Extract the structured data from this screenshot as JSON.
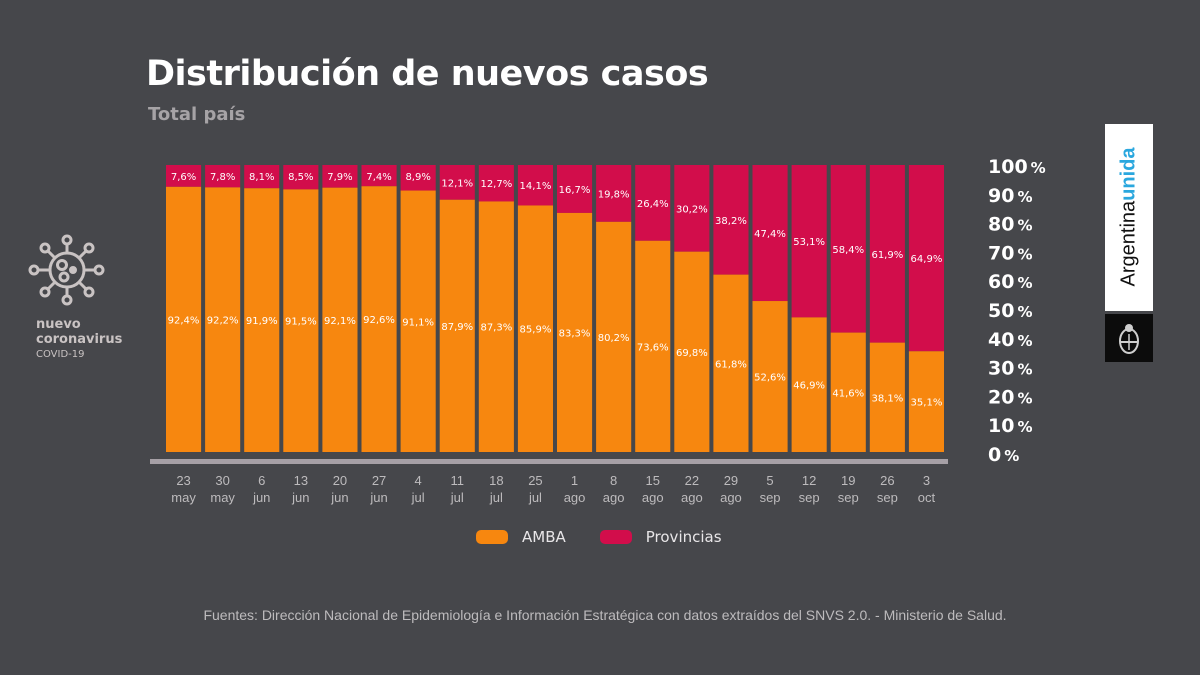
{
  "header": {
    "title": "Distribución de nuevos casos",
    "subtitle": "Total país"
  },
  "side_logo": {
    "line1": "nuevo",
    "line2": "coronavirus",
    "line3": "COVID-19",
    "icon": "virus-icon"
  },
  "brand": {
    "word1": "Argentina",
    "word2": "unida",
    "icon": "national-coat-of-arms-icon"
  },
  "colors": {
    "background": "#46474b",
    "amba": "#f7870f",
    "provincias": "#d20d4b",
    "axis": "#a6a0a6"
  },
  "footer": "Fuentes: Dirección Nacional de Epidemiología e Información Estratégica con datos extraídos del SNVS 2.0. - Ministerio de Salud.",
  "legend": [
    {
      "label": "AMBA",
      "color": "#f7870f"
    },
    {
      "label": "Provincias",
      "color": "#d20d4b"
    }
  ],
  "chart_data": {
    "type": "bar",
    "stacked": true,
    "title": "Distribución de nuevos casos",
    "subtitle": "Total país",
    "xlabel": "",
    "ylabel": "",
    "ylim": [
      0,
      100
    ],
    "yticks": [
      "0",
      "10",
      "20",
      "30",
      "40",
      "50",
      "60",
      "70",
      "80",
      "90",
      "100"
    ],
    "ytick_suffix": "%",
    "y_axis_side": "right",
    "grid": false,
    "legend_position": "bottom-center",
    "categories": [
      {
        "day": "23",
        "month": "may"
      },
      {
        "day": "30",
        "month": "may"
      },
      {
        "day": "6",
        "month": "jun"
      },
      {
        "day": "13",
        "month": "jun"
      },
      {
        "day": "20",
        "month": "jun"
      },
      {
        "day": "27",
        "month": "jun"
      },
      {
        "day": "4",
        "month": "jul"
      },
      {
        "day": "11",
        "month": "jul"
      },
      {
        "day": "18",
        "month": "jul"
      },
      {
        "day": "25",
        "month": "jul"
      },
      {
        "day": "1",
        "month": "ago"
      },
      {
        "day": "8",
        "month": "ago"
      },
      {
        "day": "15",
        "month": "ago"
      },
      {
        "day": "22",
        "month": "ago"
      },
      {
        "day": "29",
        "month": "ago"
      },
      {
        "day": "5",
        "month": "sep"
      },
      {
        "day": "12",
        "month": "sep"
      },
      {
        "day": "19",
        "month": "sep"
      },
      {
        "day": "26",
        "month": "sep"
      },
      {
        "day": "3",
        "month": "oct"
      }
    ],
    "series": [
      {
        "name": "AMBA",
        "color": "#f7870f",
        "values": [
          92.4,
          92.2,
          91.9,
          91.5,
          92.1,
          92.6,
          91.1,
          87.9,
          87.3,
          85.9,
          83.3,
          80.2,
          73.6,
          69.8,
          61.8,
          52.6,
          46.9,
          41.6,
          38.1,
          35.1
        ],
        "labels": [
          "92,4%",
          "92,2%",
          "91,9%",
          "91,5%",
          "92,1%",
          "92,6%",
          "91,1%",
          "87,9%",
          "87,3%",
          "85,9%",
          "83,3%",
          "80,2%",
          "73,6%",
          "69,8%",
          "61,8%",
          "52,6%",
          "46,9%",
          "41,6%",
          "38,1%",
          "35,1%"
        ]
      },
      {
        "name": "Provincias",
        "color": "#d20d4b",
        "values": [
          7.6,
          7.8,
          8.1,
          8.5,
          7.9,
          7.4,
          8.9,
          12.1,
          12.7,
          14.1,
          16.7,
          19.8,
          26.4,
          30.2,
          38.2,
          47.4,
          53.1,
          58.4,
          61.9,
          64.9
        ],
        "labels": [
          "7,6%",
          "7,8%",
          "8,1%",
          "8,5%",
          "7,9%",
          "7,4%",
          "8,9%",
          "12,1%",
          "12,7%",
          "14,1%",
          "16,7%",
          "19,8%",
          "26,4%",
          "30,2%",
          "38,2%",
          "47,4%",
          "53,1%",
          "58,4%",
          "61,9%",
          "64,9%"
        ]
      }
    ]
  }
}
